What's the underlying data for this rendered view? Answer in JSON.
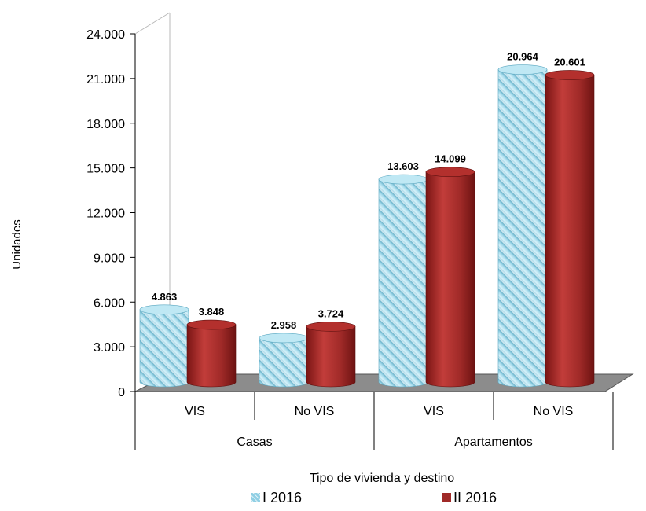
{
  "chart_data": {
    "type": "bar",
    "title": "",
    "ylabel": "Unidades",
    "xlabel": "Tipo de vivienda y destino",
    "ylim": [
      0,
      24000
    ],
    "yticks": [
      "0",
      "3.000",
      "6.000",
      "9.000",
      "12.000",
      "15.000",
      "18.000",
      "21.000",
      "24.000"
    ],
    "categories": [
      "VIS",
      "No VIS",
      "VIS",
      "No VIS"
    ],
    "groups": [
      {
        "label": "Casas",
        "span": 2
      },
      {
        "label": "Apartamentos",
        "span": 2
      }
    ],
    "series": [
      {
        "name": "I 2016",
        "values": [
          4863,
          2958,
          13603,
          20964
        ],
        "labels": [
          "4.863",
          "2.958",
          "13.603",
          "20.964"
        ],
        "color": "#9fd8ea"
      },
      {
        "name": "II 2016",
        "values": [
          3848,
          3724,
          14099,
          20601
        ],
        "labels": [
          "3.848",
          "3.724",
          "14.099",
          "20.601"
        ],
        "color": "#a02a28"
      }
    ],
    "legend_position": "bottom",
    "style": "3d-cylinder"
  }
}
